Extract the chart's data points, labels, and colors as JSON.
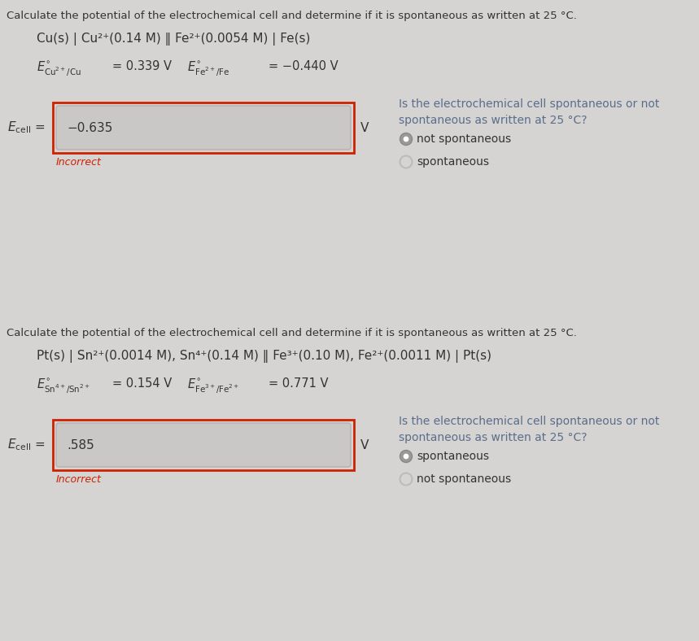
{
  "bg_color": "#d6d3d3",
  "text_color": "#333333",
  "blue_color": "#5a6e8a",
  "red_color": "#cc2200",
  "radio_filled_color": "#999999",
  "radio_empty_color": "#bbbbbb",
  "inner_box_color": "#cac7c7",
  "section1": {
    "header": "Calculate the potential of the electrochemical cell and determine if it is spontaneous as written at 25 °C.",
    "cell_line": "Cu(s) | Cu²⁺(0.14 M) ‖ Fe²⁺(0.0054 M) | Fe(s)",
    "e1_label": "$E^{\\circ}_{\\mathrm{Cu^{2+}/Cu}}$",
    "e1_eq": "= 0.339 V",
    "e2_label": "$E^{\\circ}_{\\mathrm{Fe^{2+}/Fe}}$",
    "e2_eq": "= −0.440 V",
    "ecell_label": "$E_{\\mathrm{cell}}$",
    "ecell_value": "−0.635",
    "incorrect": "Incorrect",
    "v_label": "V",
    "question_line1": "Is the electrochemical cell spontaneous or not",
    "question_line2": "spontaneous as written at 25 °C?",
    "radio1": "not spontaneous",
    "radio2": "spontaneous",
    "radio1_filled": true,
    "radio2_filled": false
  },
  "section2": {
    "header": "Calculate the potential of the electrochemical cell and determine if it is spontaneous as written at 25 °C.",
    "cell_line": "Pt(s) | Sn²⁺(0.0014 M), Sn⁴⁺(0.14 M) ‖ Fe³⁺(0.10 M), Fe²⁺(0.0011 M) | Pt(s)",
    "e1_label": "$E^{\\circ}_{\\mathrm{Sn^{4+}/Sn^{2+}}}$",
    "e1_eq": "= 0.154 V",
    "e2_label": "$E^{\\circ}_{\\mathrm{Fe^{3+}/Fe^{2+}}}$",
    "e2_eq": "= 0.771 V",
    "ecell_label": "$E_{\\mathrm{cell}}$",
    "ecell_value": ".585",
    "incorrect": "Incorrect",
    "v_label": "V",
    "question_line1": "Is the electrochemical cell spontaneous or not",
    "question_line2": "spontaneous as written at 25 °C?",
    "radio1": "spontaneous",
    "radio2": "not spontaneous",
    "radio1_filled": true,
    "radio2_filled": false
  },
  "fig_width": 8.59,
  "fig_height": 7.88,
  "dpi": 100
}
